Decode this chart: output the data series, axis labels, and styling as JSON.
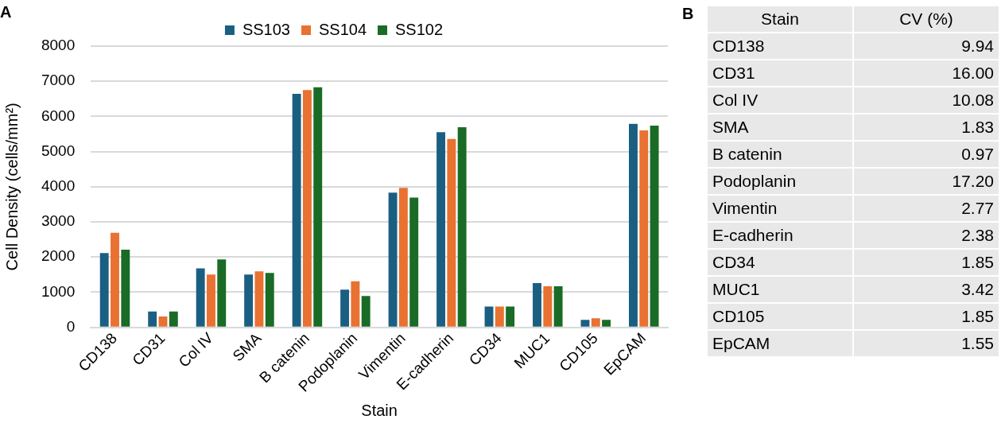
{
  "chart_data": [
    {
      "type": "bar",
      "title": "A",
      "xlabel": "Stain",
      "ylabel": "Cell Density (cells/mm²)",
      "categories": [
        "CD138",
        "CD31",
        "Col IV",
        "SMA",
        "B catenin",
        "Podoplanin",
        "Vimentin",
        "E-cadherin",
        "CD34",
        "MUC1",
        "CD105",
        "EpCAM"
      ],
      "series": [
        {
          "name": "SS103",
          "color": "#1a5f82",
          "values": [
            2110,
            450,
            1680,
            1500,
            6640,
            1070,
            3830,
            5550,
            590,
            1260,
            210,
            5790
          ]
        },
        {
          "name": "SS104",
          "color": "#e97132",
          "values": [
            2690,
            310,
            1500,
            1590,
            6750,
            1310,
            3970,
            5360,
            590,
            1170,
            260,
            5600
          ]
        },
        {
          "name": "SS102",
          "color": "#1a6b26",
          "values": [
            2210,
            450,
            1930,
            1550,
            6830,
            890,
            3690,
            5690,
            590,
            1170,
            210,
            5740
          ]
        }
      ],
      "ylim": [
        0,
        8000
      ],
      "yticks": [
        0,
        1000,
        2000,
        3000,
        4000,
        5000,
        6000,
        7000,
        8000
      ],
      "grid": "y",
      "legend": "top"
    },
    {
      "type": "other",
      "title": "B",
      "xlabel": "Stain",
      "ylabel": "CV (%)",
      "categories": [
        "CD138",
        "CD31",
        "Col IV",
        "SMA",
        "B catenin",
        "Podoplanin",
        "Vimentin",
        "E-cadherin",
        "CD34",
        "MUC1",
        "CD105",
        "EpCAM"
      ],
      "values": [
        9.94,
        16.0,
        10.08,
        1.83,
        0.97,
        17.2,
        2.77,
        2.38,
        1.85,
        3.42,
        1.85,
        1.55
      ],
      "value_labels": [
        "9.94",
        "16.00",
        "10.08",
        "1.83",
        "0.97",
        "17.20",
        "2.77",
        "2.38",
        "1.85",
        "3.42",
        "1.85",
        "1.55"
      ]
    }
  ]
}
